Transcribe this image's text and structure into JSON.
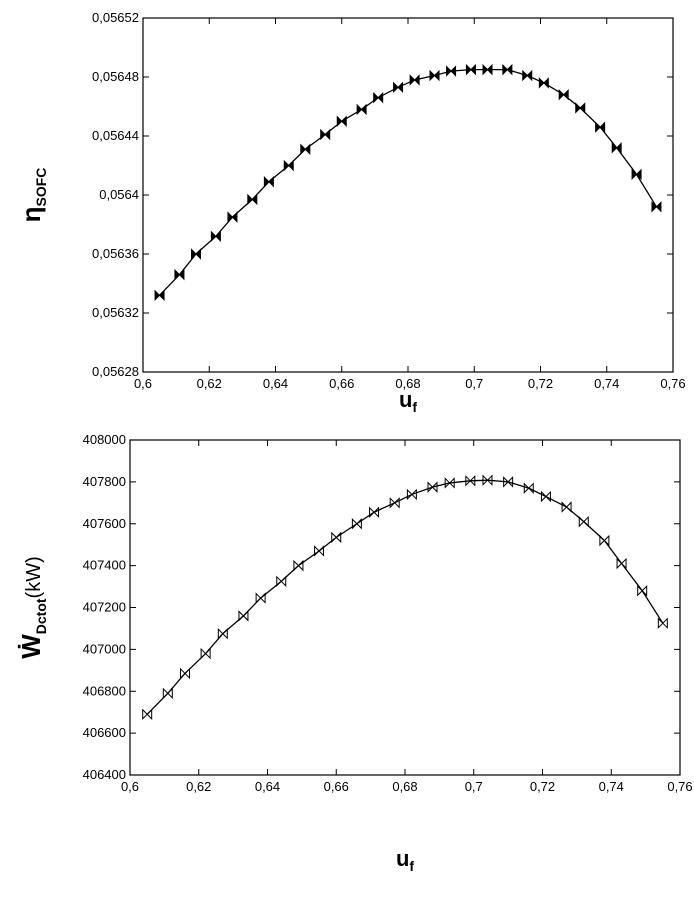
{
  "chart_data": [
    {
      "type": "line",
      "x": [
        0.605,
        0.611,
        0.616,
        0.622,
        0.627,
        0.633,
        0.638,
        0.644,
        0.649,
        0.655,
        0.66,
        0.666,
        0.671,
        0.677,
        0.682,
        0.688,
        0.693,
        0.699,
        0.704,
        0.71,
        0.716,
        0.721,
        0.727,
        0.732,
        0.738,
        0.743,
        0.749,
        0.755
      ],
      "values": [
        0.056332,
        0.056346,
        0.05636,
        0.056372,
        0.056385,
        0.056397,
        0.056409,
        0.05642,
        0.056431,
        0.056441,
        0.05645,
        0.056458,
        0.056466,
        0.056473,
        0.056478,
        0.056481,
        0.056484,
        0.056485,
        0.056485,
        0.056485,
        0.056481,
        0.056476,
        0.056468,
        0.056459,
        0.056446,
        0.056432,
        0.056414,
        0.056392
      ],
      "color": "#000000",
      "marker_fill": "#000000",
      "xlim": [
        0.6,
        0.76
      ],
      "xticks": [
        {
          "value": 0.6,
          "label": "0,6"
        },
        {
          "value": 0.62,
          "label": "0,62"
        },
        {
          "value": 0.64,
          "label": "0,64"
        },
        {
          "value": 0.66,
          "label": "0,66"
        },
        {
          "value": 0.68,
          "label": "0,68"
        },
        {
          "value": 0.7,
          "label": "0,7"
        },
        {
          "value": 0.72,
          "label": "0,72"
        },
        {
          "value": 0.74,
          "label": "0,74"
        },
        {
          "value": 0.76,
          "label": "0,76"
        }
      ],
      "ylim": [
        0.05628,
        0.05652
      ],
      "yticks": [
        {
          "value": 0.05628,
          "label": "0,05628"
        },
        {
          "value": 0.05632,
          "label": "0,05632"
        },
        {
          "value": 0.05636,
          "label": "0,05636"
        },
        {
          "value": 0.0564,
          "label": "0,0564"
        },
        {
          "value": 0.05644,
          "label": "0,05644"
        },
        {
          "value": 0.05648,
          "label": "0,05648"
        },
        {
          "value": 0.05652,
          "label": "0,05652"
        }
      ],
      "x_label": {
        "main": "u",
        "sub": "f"
      },
      "y_label": {
        "main": "η",
        "sub": "SOFC"
      }
    },
    {
      "type": "line",
      "x": [
        0.605,
        0.611,
        0.616,
        0.622,
        0.627,
        0.633,
        0.638,
        0.644,
        0.649,
        0.655,
        0.66,
        0.666,
        0.671,
        0.677,
        0.682,
        0.688,
        0.693,
        0.699,
        0.704,
        0.71,
        0.716,
        0.721,
        0.727,
        0.732,
        0.738,
        0.743,
        0.749,
        0.755
      ],
      "values": [
        406690,
        406790,
        406885,
        406980,
        407075,
        407160,
        407245,
        407325,
        407400,
        407470,
        407535,
        407600,
        407655,
        407700,
        407740,
        407775,
        407795,
        407805,
        407808,
        407800,
        407770,
        407730,
        407680,
        407610,
        407520,
        407410,
        407280,
        407125
      ],
      "color": "#000000",
      "marker_fill": "none",
      "xlim": [
        0.6,
        0.76
      ],
      "xticks": [
        {
          "value": 0.6,
          "label": "0,6"
        },
        {
          "value": 0.62,
          "label": "0,62"
        },
        {
          "value": 0.64,
          "label": "0,64"
        },
        {
          "value": 0.66,
          "label": "0,66"
        },
        {
          "value": 0.68,
          "label": "0,68"
        },
        {
          "value": 0.7,
          "label": "0,7"
        },
        {
          "value": 0.72,
          "label": "0,72"
        },
        {
          "value": 0.74,
          "label": "0,74"
        },
        {
          "value": 0.76,
          "label": "0,76"
        }
      ],
      "ylim": [
        406400,
        408000
      ],
      "yticks": [
        406400,
        406600,
        406800,
        407000,
        407200,
        407400,
        407600,
        407800,
        408000
      ],
      "x_label": {
        "main": "u",
        "sub": "f"
      },
      "y_label": {
        "main": "Ẇ",
        "sub": "Dctot",
        "unit": "(kW)"
      }
    }
  ]
}
